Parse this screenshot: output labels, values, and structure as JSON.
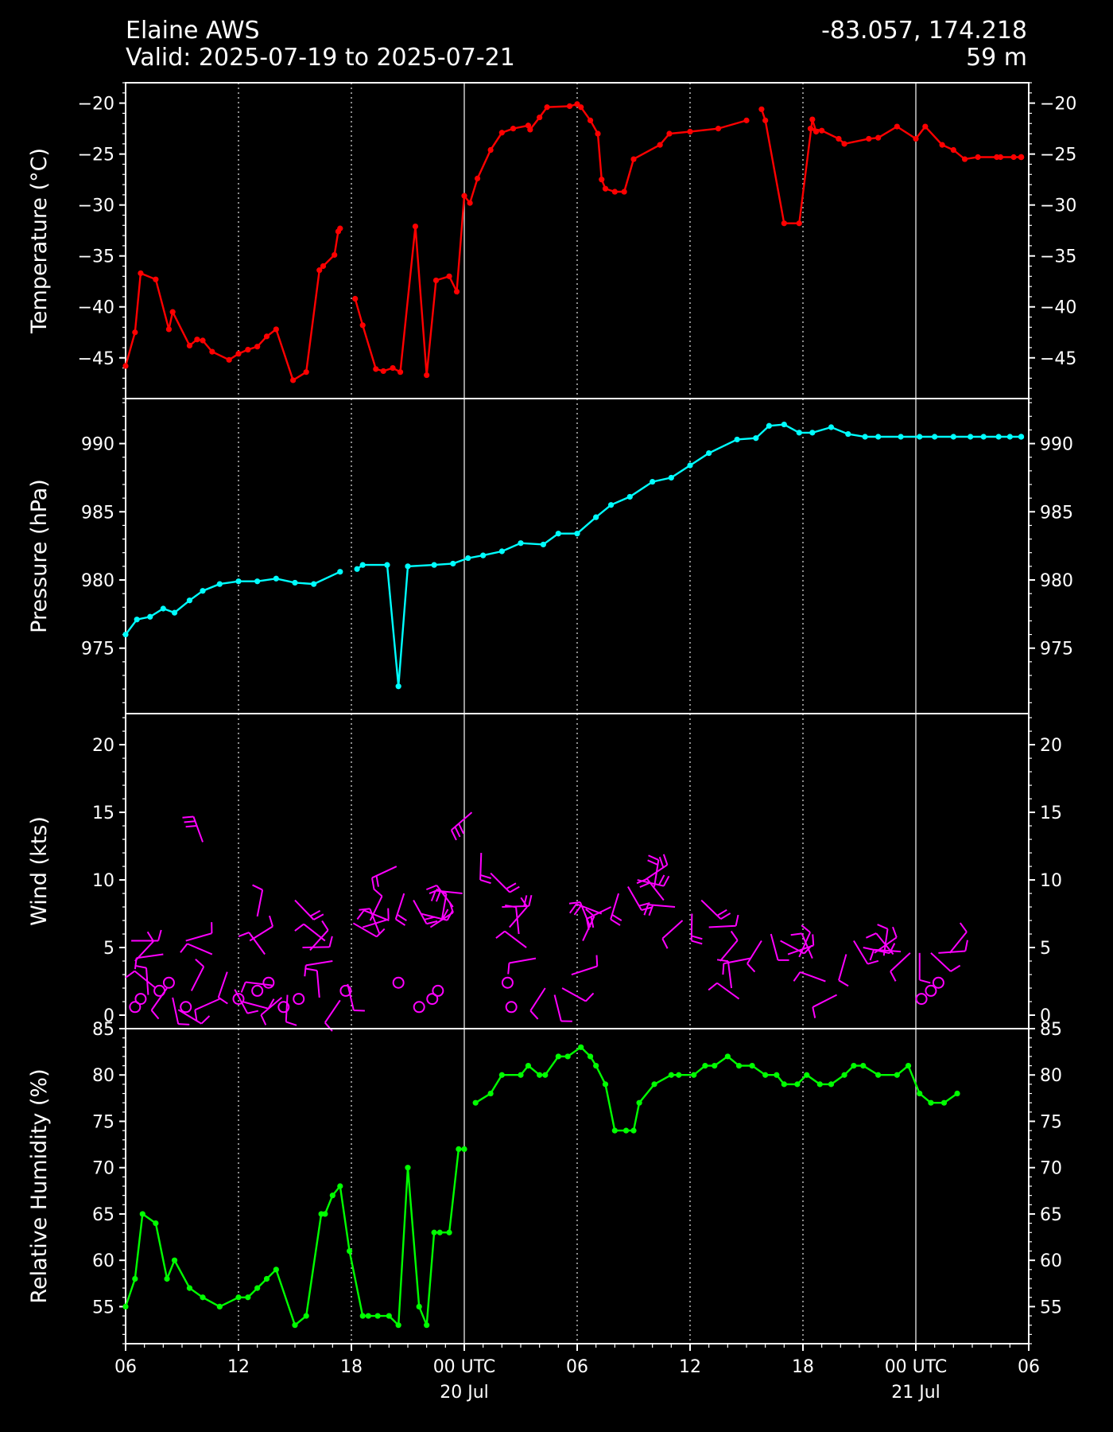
{
  "header": {
    "station": "Elaine AWS",
    "valid": "Valid: 2025-07-19 to 2025-07-21",
    "coords": "-83.057, 174.218",
    "elevation": "59 m"
  },
  "colors": {
    "temperature": "#ff0000",
    "pressure": "#00ffff",
    "wind": "#ff00ff",
    "humidity": "#00ff00",
    "background": "#000000",
    "foreground": "#ffffff"
  },
  "chart_data": [
    {
      "type": "line",
      "ylabel": "Temperature ($^\\circ$C)",
      "ylabel_display": "Temperature (°C)",
      "ylim": [
        -49,
        -18
      ],
      "yticks": [
        -20,
        -25,
        -30,
        -35,
        -40,
        -45
      ],
      "ytick_labels": [
        "−20",
        "−25",
        "−30",
        "−35",
        "−40",
        "−45"
      ],
      "x_hours": [
        0,
        0.5,
        0.8,
        1.6,
        2.3,
        2.5,
        3.4,
        3.8,
        4.1,
        4.6,
        5.5,
        6.0,
        6.5,
        7.0,
        7.5,
        8.0,
        8.9,
        9.6,
        10.3,
        10.5,
        11.1,
        11.3,
        11.4,
        12.2,
        12.6,
        13.3,
        13.7,
        14.2,
        14.6,
        15.4,
        16.0,
        16.5,
        17.2,
        17.6,
        18.0,
        18.3,
        18.7,
        19.4,
        20.0,
        20.6,
        21.4,
        21.5,
        22.0,
        22.4,
        23.6,
        24.0,
        24.2,
        24.7,
        25.1,
        25.3,
        25.5,
        26.0,
        26.5,
        27.0,
        28.4,
        28.9,
        30.0,
        31.5,
        33.0,
        33.8,
        34.0,
        35.0,
        35.8,
        36.5,
        36.7,
        36.4,
        37.0,
        37.9,
        38.2,
        39.5,
        40.0,
        41.0,
        42.0,
        42.5,
        43.4,
        44.0,
        44.6,
        45.3,
        46.3,
        46.5,
        47.2,
        47.6,
        48.0,
        48.4,
        49.0,
        49.6,
        50.5,
        51.3,
        51.7,
        52.4,
        53.7
      ],
      "values": [
        -45.8,
        -42.5,
        -36.7,
        -37.3,
        -42.2,
        -40.5,
        -43.8,
        -43.2,
        -43.3,
        -44.4,
        -45.2,
        -44.6,
        -44.2,
        -43.9,
        -42.9,
        -42.2,
        -47.2,
        -46.4,
        -36.4,
        -36.0,
        -34.9,
        -32.6,
        -32.3,
        -39.2,
        -41.8,
        -46.1,
        -46.3,
        -46.0,
        -46.4,
        -32.1,
        -46.7,
        -37.4,
        -37.0,
        -38.5,
        -29.1,
        -29.8,
        -27.4,
        -24.6,
        -22.9,
        -22.5,
        -22.2,
        -22.6,
        -21.4,
        -20.4,
        -20.3,
        -20.1,
        -20.4,
        -21.7,
        -23.0,
        -27.5,
        -28.4,
        -28.7,
        -28.7,
        -25.5,
        -24.1,
        -23.0,
        -22.8,
        -22.5,
        -21.7,
        -20.6,
        -21.7,
        -31.8,
        -31.8,
        -21.6,
        -22.8,
        -22.5,
        -22.7,
        -23.5,
        -24.0,
        -23.5,
        -23.4,
        -22.3,
        -23.5,
        -22.3,
        -24.1,
        -24.6,
        -25.5,
        -25.3,
        -25.3,
        -25.3,
        -25.3,
        -25.3,
        -25.3,
        -25.3,
        -25.3,
        -25.3,
        -25.3,
        -25.3,
        -25.3,
        -25.3,
        -25.3
      ],
      "gaps_after_hour": [
        11.4,
        33.0
      ]
    },
    {
      "type": "line",
      "ylabel": "Pressure (hPa)",
      "ylim": [
        970.2,
        993.3
      ],
      "yticks": [
        990,
        985,
        980,
        975
      ],
      "ytick_labels": [
        "990",
        "985",
        "980",
        "975"
      ],
      "x_hours": [
        0,
        0.6,
        1.3,
        2.0,
        2.6,
        3.4,
        4.1,
        5.0,
        6.0,
        7.0,
        8.0,
        9.0,
        10.0,
        11.4,
        12.3,
        12.6,
        13.9,
        14.5,
        15.0,
        16.4,
        17.4,
        18.2,
        19.0,
        20.0,
        21.0,
        22.2,
        23.0,
        24.0,
        25.0,
        25.8,
        26.8,
        28.0,
        29.0,
        30.0,
        31.0,
        32.5,
        33.5,
        34.2,
        35.0,
        35.8,
        36.5,
        37.5,
        38.4,
        39.3,
        40.0,
        41.2,
        42.2,
        43.0,
        44.0,
        44.9,
        45.6,
        46.4,
        47.0,
        48.0,
        48.5,
        48.9
      ],
      "values": [
        976.0,
        977.1,
        977.3,
        977.9,
        977.6,
        978.5,
        979.2,
        979.7,
        979.9,
        979.9,
        980.1,
        979.8,
        979.7,
        980.6,
        980.8,
        981.1,
        981.1,
        972.2,
        981.0,
        981.1,
        981.2,
        981.6,
        981.8,
        982.1,
        982.7,
        982.6,
        983.4,
        983.4,
        984.6,
        985.5,
        986.1,
        987.2,
        987.5,
        988.4,
        989.3,
        990.3,
        990.4,
        991.3,
        991.4,
        990.8,
        990.8,
        991.2,
        990.7,
        990.5,
        990.5,
        990.5,
        990.5,
        990.5,
        990.5,
        990.5,
        990.5,
        990.5,
        990.5,
        990.5,
        990.5,
        990.5
      ],
      "gaps_after_hour": [
        11.4
      ]
    },
    {
      "type": "scatter",
      "mark": "wind-barb",
      "ylabel": "Wind (kts)",
      "ylim": [
        -1,
        22.3
      ],
      "yticks": [
        20,
        15,
        10,
        5,
        0
      ],
      "ytick_labels": [
        "20",
        "15",
        "10",
        "5",
        "0"
      ],
      "x_hours": [
        0.3,
        0.5,
        1.2,
        1.6,
        2.0,
        2.2,
        2.5,
        2.8,
        3.2,
        3.5,
        4.1,
        4.6,
        5.0,
        5.4,
        5.8,
        6.2,
        6.6,
        7.0,
        7.4,
        7.8,
        8.3,
        8.6,
        9.0,
        9.4,
        9.8,
        10.3,
        10.6,
        11.0,
        11.4,
        11.8,
        12.1,
        12.6,
        13.0,
        13.5,
        14.0,
        14.4,
        14.8,
        15.3,
        15.7,
        16.2,
        16.8,
        17.4,
        17.9,
        18.4,
        18.9,
        19.4,
        20.0,
        20.4,
        20.9,
        21.3,
        21.8,
        22.3,
        22.8,
        23.2,
        23.7,
        24.3,
        24.7,
        25.3,
        25.8,
        26.2,
        26.7,
        27.2,
        27.6,
        28.1,
        28.6,
        29.2,
        29.6,
        30.1,
        30.6,
        31.0,
        31.6,
        32.2,
        32.6,
        33.2,
        33.8,
        34.3,
        34.8,
        35.2,
        35.8,
        36.5,
        37.2,
        37.8,
        38.3,
        38.7,
        39.2,
        39.8,
        40.3,
        40.8,
        41.2,
        41.7,
        42.2,
        42.8,
        43.2,
        43.8
      ],
      "values": [
        5.5,
        4.0,
        1.5,
        2.0,
        4.5,
        2.0,
        1.3,
        0.4,
        5.5,
        1.8,
        12.8,
        4.5,
        1.2,
        3.2,
        1.9,
        1.0,
        5.5,
        7.3,
        4.5,
        2.2,
        1.3,
        1.5,
        8.5,
        5.0,
        4.8,
        1.3,
        5.5,
        4.0,
        1.1,
        2.3,
        6.8,
        6.5,
        7.0,
        6.0,
        7.0,
        11.0,
        9.0,
        8.5,
        7.5,
        6.5,
        7.0,
        8.0,
        9.0,
        15.0,
        12.0,
        10.5,
        8.0,
        6.5,
        6.0,
        5.0,
        4.2,
        2.0,
        1.5,
        2.0,
        3.0,
        5.5,
        6.5,
        7.5,
        8.0,
        9.0,
        9.5,
        10.0,
        10.0,
        9.5,
        8.5,
        8.0,
        7.0,
        7.5,
        8.5,
        6.5,
        4.0,
        2.0,
        1.2,
        4.2,
        5.5,
        6.0,
        5.5,
        4.5,
        4.3,
        4.2,
        2.5,
        1.5,
        4.5,
        5.5,
        5.0,
        4.6,
        4.4,
        4.5,
        4.7,
        4.6,
        4.6,
        4.6,
        4.6,
        4.6
      ],
      "calm_markers_hours": [
        0.5,
        0.8,
        1.8,
        2.3,
        3.2,
        6.0,
        7.0,
        7.6,
        8.4,
        9.2,
        11.7,
        14.5,
        15.6,
        16.3,
        16.6,
        20.3,
        20.5,
        42.3,
        42.8,
        43.2
      ]
    },
    {
      "type": "line",
      "ylabel": "Relative Humidity (%)",
      "ylim": [
        51,
        85
      ],
      "yticks": [
        85,
        80,
        75,
        70,
        65,
        60,
        55
      ],
      "ytick_labels": [
        "85",
        "80",
        "75",
        "70",
        "65",
        "60",
        "55"
      ],
      "x_hours": [
        0,
        0.5,
        0.9,
        1.6,
        2.2,
        2.6,
        3.4,
        4.1,
        5.0,
        6.0,
        6.5,
        7.0,
        7.5,
        8.0,
        9.0,
        9.6,
        10.4,
        10.6,
        11.0,
        11.4,
        11.9,
        12.6,
        12.9,
        13.4,
        14.0,
        14.5,
        15.0,
        15.6,
        16.0,
        16.4,
        16.7,
        17.2,
        17.7,
        18.0,
        18.6,
        19.4,
        20.0,
        21.0,
        21.4,
        22.0,
        22.3,
        23.0,
        23.5,
        24.2,
        24.7,
        25.0,
        25.5,
        26.0,
        26.6,
        27.0,
        27.3,
        28.1,
        29.0,
        29.4,
        30.2,
        30.8,
        31.3,
        32.0,
        32.6,
        33.3,
        34.0,
        34.6,
        35.0,
        35.7,
        36.2,
        36.9,
        37.5,
        38.2,
        38.7,
        39.2,
        40.0,
        41.0,
        41.6,
        42.2,
        42.8,
        43.5,
        44.2
      ],
      "values": [
        55,
        58,
        65,
        64,
        58,
        60,
        57,
        56,
        55,
        56,
        56,
        57,
        58,
        59,
        53,
        54,
        65,
        65,
        67,
        68,
        61,
        54,
        54,
        54,
        54,
        53,
        70,
        55,
        53,
        63,
        63,
        63,
        72,
        72,
        77,
        78,
        80,
        80,
        81,
        80,
        80,
        82,
        82,
        83,
        82,
        81,
        79,
        74,
        74,
        74,
        77,
        79,
        80,
        80,
        80,
        81,
        81,
        82,
        81,
        81,
        80,
        80,
        79,
        79,
        80,
        79,
        79,
        80,
        81,
        81,
        80,
        80,
        81,
        78,
        77,
        77,
        78
      ],
      "gaps_after_hour": [
        18.0
      ]
    }
  ],
  "x_axis": {
    "range_hours": [
      0,
      48
    ],
    "start_time": "2025-07-19 06 UTC",
    "ticks": [
      {
        "hour": 0,
        "label": "06"
      },
      {
        "hour": 6,
        "label": "12"
      },
      {
        "hour": 12,
        "label": "18"
      },
      {
        "hour": 18,
        "label": "00 UTC",
        "sub": "20 Jul"
      },
      {
        "hour": 24,
        "label": "06"
      },
      {
        "hour": 30,
        "label": "12"
      },
      {
        "hour": 36,
        "label": "18"
      },
      {
        "hour": 42,
        "label": "00 UTC",
        "sub": "21 Jul"
      },
      {
        "hour": 48,
        "label": "06"
      }
    ],
    "dotted_grid_hours": [
      6,
      12,
      24,
      30,
      36
    ],
    "solid_grid_hours": [
      18,
      42
    ]
  }
}
